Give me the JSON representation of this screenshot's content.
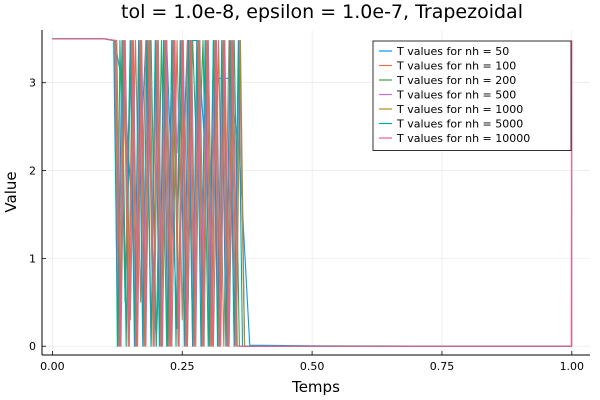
{
  "chart_data": {
    "type": "line",
    "title": "tol = 1.0e-8, epsilon = 1.0e-7, Trapezoidal",
    "xlabel": "Temps",
    "ylabel": "Value",
    "xlim": [
      -0.02,
      1.035
    ],
    "ylim": [
      -0.1,
      3.6
    ],
    "xticks": [
      0.0,
      0.25,
      0.5,
      0.75,
      1.0
    ],
    "xtick_labels": [
      "0.00",
      "0.25",
      "0.50",
      "0.75",
      "1.00"
    ],
    "yticks": [
      0,
      1,
      2,
      3
    ],
    "ytick_labels": [
      "0",
      "1",
      "2",
      "3"
    ],
    "grid": true,
    "legend_position": "top-right",
    "series": [
      {
        "name": "T values for nh = 50",
        "color": "#009AFA",
        "x": [
          0.0,
          0.02,
          0.04,
          0.06,
          0.08,
          0.1,
          0.12,
          0.14,
          0.16,
          0.18,
          0.2,
          0.22,
          0.24,
          0.26,
          0.28,
          0.3,
          0.32,
          0.34,
          0.36,
          0.38,
          0.4,
          0.5,
          0.6,
          0.7,
          0.8,
          0.9,
          0.98,
          1.0
        ],
        "y": [
          3.5,
          3.5,
          3.5,
          3.5,
          3.5,
          3.5,
          3.48,
          2.8,
          0.9,
          3.48,
          0.0,
          3.48,
          0.2,
          3.48,
          3.48,
          1.7,
          3.05,
          3.05,
          2.2,
          0.01,
          0.01,
          0.005,
          0.003,
          0.002,
          0.002,
          0.002,
          0.002,
          0.002
        ]
      },
      {
        "name": "T values for nh = 100",
        "color": "#E36F47",
        "x": [
          0.0,
          0.05,
          0.1,
          0.12,
          0.13,
          0.14,
          0.15,
          0.16,
          0.17,
          0.18,
          0.19,
          0.2,
          0.21,
          0.22,
          0.23,
          0.24,
          0.25,
          0.26,
          0.27,
          0.28,
          0.29,
          0.3,
          0.31,
          0.32,
          0.33,
          0.34,
          0.35,
          0.36,
          0.37,
          0.5,
          1.0
        ],
        "y": [
          3.5,
          3.5,
          3.5,
          3.48,
          0.0,
          3.48,
          0.3,
          3.48,
          0.5,
          3.48,
          0.0,
          3.48,
          0.6,
          3.48,
          0.0,
          3.48,
          0.3,
          3.48,
          0.0,
          3.48,
          0.2,
          3.48,
          0.0,
          3.48,
          0.0,
          3.48,
          0.0,
          3.48,
          0.0,
          0.0,
          0.0
        ]
      },
      {
        "name": "T values for nh = 200",
        "color": "#3EA44E",
        "x": [
          0.0,
          0.1,
          0.12,
          0.125,
          0.13,
          0.14,
          0.15,
          0.16,
          0.17,
          0.18,
          0.19,
          0.2,
          0.21,
          0.22,
          0.23,
          0.24,
          0.25,
          0.26,
          0.27,
          0.28,
          0.29,
          0.3,
          0.31,
          0.32,
          0.33,
          0.34,
          0.35,
          0.36,
          0.37,
          0.5,
          1.0
        ],
        "y": [
          3.5,
          3.5,
          3.48,
          0.0,
          3.48,
          0.5,
          3.48,
          0.0,
          3.48,
          0.4,
          3.48,
          0.0,
          3.48,
          0.0,
          3.48,
          1.2,
          3.48,
          0.0,
          3.48,
          1.8,
          3.48,
          0.0,
          3.48,
          0.0,
          3.48,
          0.0,
          3.48,
          0.0,
          0.0,
          0.0,
          0.0
        ]
      },
      {
        "name": "T values for nh = 500",
        "color": "#C371D2",
        "x": [
          0.0,
          0.1,
          0.12,
          0.128,
          0.136,
          0.144,
          0.152,
          0.16,
          0.168,
          0.176,
          0.184,
          0.192,
          0.2,
          0.208,
          0.216,
          0.224,
          0.232,
          0.24,
          0.248,
          0.256,
          0.264,
          0.272,
          0.28,
          0.288,
          0.296,
          0.304,
          0.312,
          0.32,
          0.328,
          0.336,
          0.344,
          0.352,
          0.36,
          0.37,
          0.5,
          1.0
        ],
        "y": [
          3.5,
          3.5,
          3.48,
          0.0,
          3.48,
          1.5,
          3.48,
          0.0,
          3.48,
          0.0,
          3.48,
          0.8,
          3.48,
          0.0,
          3.48,
          0.0,
          3.48,
          2.2,
          3.48,
          0.0,
          3.48,
          0.0,
          3.48,
          0.0,
          3.48,
          0.0,
          3.48,
          0.0,
          3.48,
          0.0,
          3.48,
          0.0,
          3.48,
          0.0,
          0.0,
          0.0
        ]
      },
      {
        "name": "T values for nh = 1000",
        "color": "#AC8E18",
        "x": [
          0.0,
          0.1,
          0.122,
          0.13,
          0.138,
          0.146,
          0.154,
          0.162,
          0.17,
          0.178,
          0.186,
          0.194,
          0.202,
          0.21,
          0.218,
          0.226,
          0.234,
          0.242,
          0.25,
          0.258,
          0.266,
          0.274,
          0.282,
          0.29,
          0.298,
          0.306,
          0.314,
          0.322,
          0.33,
          0.338,
          0.346,
          0.354,
          0.362,
          0.37,
          0.5,
          1.0
        ],
        "y": [
          3.5,
          3.5,
          3.48,
          0.0,
          3.48,
          0.0,
          3.48,
          0.0,
          3.48,
          0.0,
          3.48,
          0.0,
          3.48,
          0.0,
          3.48,
          0.0,
          3.48,
          0.0,
          3.48,
          0.0,
          3.48,
          0.0,
          3.48,
          0.0,
          3.48,
          0.0,
          3.48,
          0.0,
          3.48,
          0.0,
          3.48,
          0.0,
          3.48,
          0.0,
          0.0,
          0.0
        ]
      },
      {
        "name": "T values for nh = 5000",
        "color": "#00A9AD",
        "x": [
          0.0,
          0.1,
          0.118,
          0.126,
          0.134,
          0.142,
          0.15,
          0.158,
          0.166,
          0.174,
          0.182,
          0.19,
          0.198,
          0.206,
          0.214,
          0.222,
          0.23,
          0.238,
          0.246,
          0.254,
          0.262,
          0.27,
          0.278,
          0.286,
          0.294,
          0.302,
          0.31,
          0.318,
          0.326,
          0.334,
          0.342,
          0.35,
          0.358,
          0.366,
          0.5,
          1.0
        ],
        "y": [
          3.5,
          3.5,
          3.48,
          0.0,
          3.48,
          0.0,
          3.48,
          0.0,
          3.48,
          0.0,
          3.48,
          0.0,
          3.48,
          0.0,
          3.48,
          0.0,
          3.48,
          0.0,
          3.48,
          0.0,
          3.48,
          0.0,
          3.48,
          0.0,
          3.48,
          0.0,
          3.48,
          0.0,
          3.48,
          0.0,
          3.48,
          0.0,
          3.48,
          0.0,
          0.0,
          0.0
        ]
      },
      {
        "name": "T values for nh = 10000",
        "color": "#ED5D92",
        "x": [
          0.0,
          0.1,
          0.124,
          0.132,
          0.14,
          0.148,
          0.156,
          0.164,
          0.172,
          0.18,
          0.188,
          0.196,
          0.204,
          0.212,
          0.22,
          0.228,
          0.236,
          0.244,
          0.252,
          0.26,
          0.268,
          0.276,
          0.284,
          0.292,
          0.3,
          0.308,
          0.316,
          0.324,
          0.332,
          0.34,
          0.348,
          0.356,
          0.364,
          0.5,
          0.999,
          1.0,
          1.0
        ],
        "y": [
          3.5,
          3.5,
          3.48,
          0.0,
          3.48,
          0.0,
          3.48,
          0.0,
          3.48,
          0.0,
          3.48,
          0.0,
          3.48,
          0.0,
          3.48,
          0.0,
          3.48,
          0.0,
          3.48,
          0.0,
          3.48,
          0.0,
          3.48,
          0.0,
          3.48,
          0.0,
          3.48,
          0.0,
          3.48,
          0.0,
          3.48,
          0.0,
          0.0,
          0.0,
          0.0,
          3.48,
          0.0
        ]
      }
    ]
  }
}
